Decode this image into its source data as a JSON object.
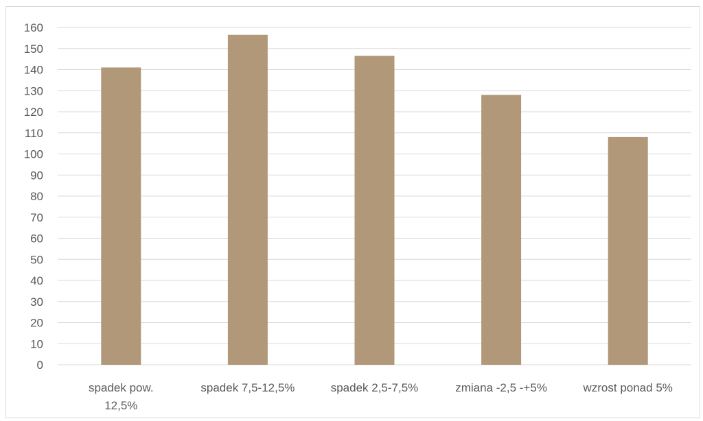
{
  "chart_data": {
    "type": "bar",
    "title": "",
    "xlabel": "",
    "ylabel": "",
    "categories": [
      [
        "spadek pow.",
        "12,5%"
      ],
      [
        "spadek 7,5-12,5%"
      ],
      [
        "spadek 2,5-7,5%"
      ],
      [
        "zmiana -2,5 -+5%"
      ],
      [
        "wzrost ponad 5%"
      ]
    ],
    "values": [
      141,
      156.5,
      146.5,
      128,
      108
    ],
    "ylim": [
      0,
      160
    ],
    "yticks": [
      0,
      10,
      20,
      30,
      40,
      50,
      60,
      70,
      80,
      90,
      100,
      110,
      120,
      130,
      140,
      150,
      160
    ],
    "grid": true,
    "legend": "none",
    "colors": {
      "bar": "#b09878",
      "grid": "#d9d9d9",
      "tick_text": "#595959"
    }
  }
}
